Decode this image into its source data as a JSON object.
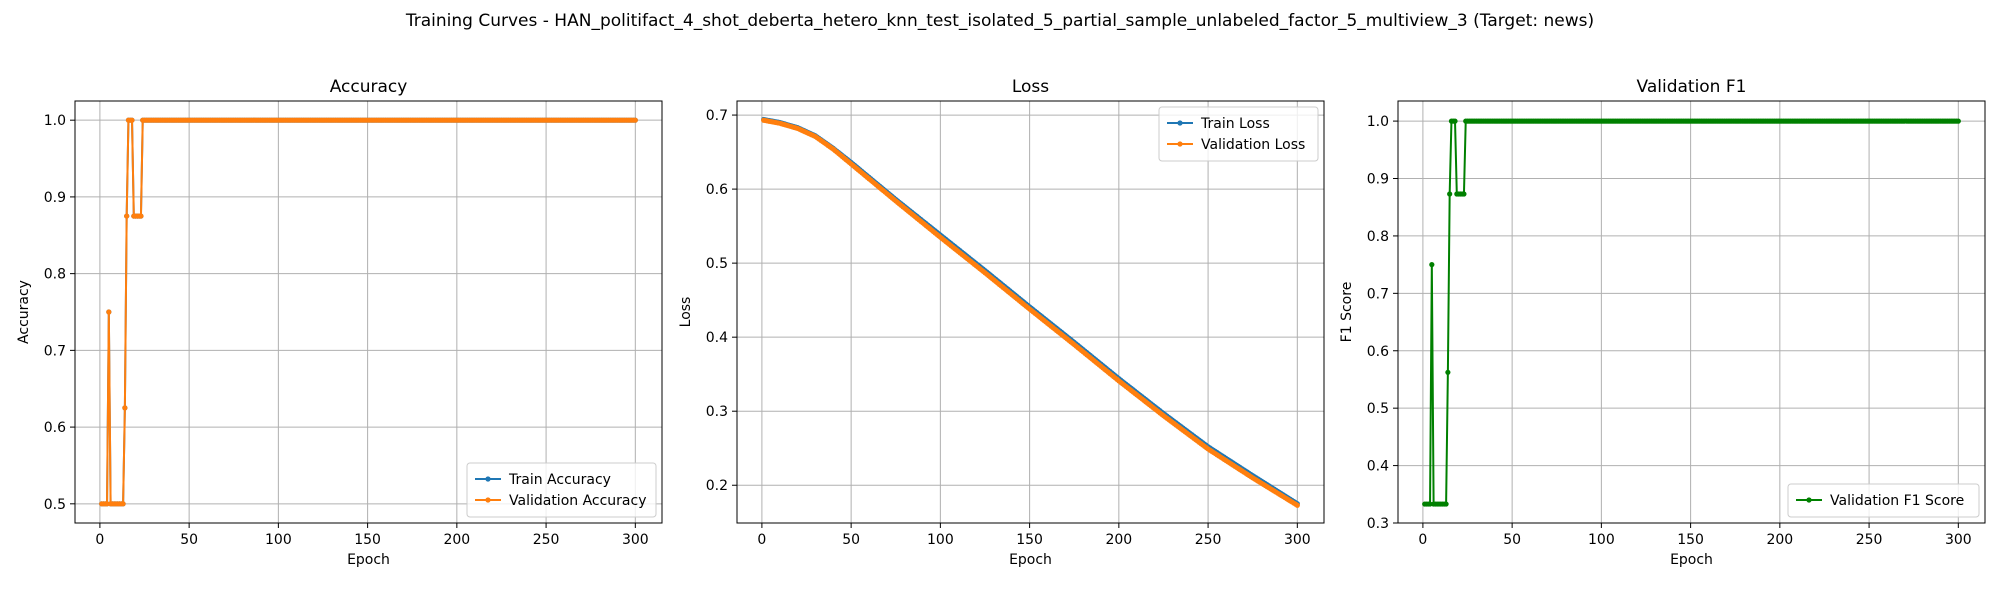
{
  "figure": {
    "suptitle": "Training Curves - HAN_politifact_4_shot_deberta_hetero_knn_test_isolated_5_partial_sample_unlabeled_factor_5_multiview_3 (Target: news)"
  },
  "colors": {
    "train": "#1f77b4",
    "validation": "#ff7f0e",
    "f1": "#008000"
  },
  "chart_data": [
    {
      "type": "line",
      "title": "Accuracy",
      "xlabel": "Epoch",
      "ylabel": "Accuracy",
      "xlim": [
        -13.95,
        314.95
      ],
      "ylim": [
        0.475,
        1.025
      ],
      "xticks": [
        0,
        50,
        100,
        150,
        200,
        250,
        300
      ],
      "yticks": [
        0.5,
        0.6,
        0.7,
        0.8,
        0.9,
        1.0
      ],
      "ytick_decimals": 1,
      "grid": true,
      "legend_position": "lower-right",
      "series": [
        {
          "name": "Train Accuracy",
          "color": "#1f77b4",
          "marker": "dot",
          "segments": [
            {
              "x": [
                1,
                2,
                3,
                4,
                5,
                6,
                7,
                8,
                9,
                10,
                11,
                12,
                13,
                14,
                15,
                16,
                17,
                18,
                19,
                20,
                21,
                22,
                23,
                24
              ],
              "y": [
                0.5,
                0.5,
                0.5,
                0.5,
                0.75,
                0.5,
                0.5,
                0.5,
                0.5,
                0.5,
                0.5,
                0.5,
                0.5,
                0.625,
                0.875,
                1.0,
                1.0,
                1.0,
                0.875,
                0.875,
                0.875,
                0.875,
                0.875,
                1.0
              ]
            },
            {
              "from": 24,
              "to": 300,
              "y": 1.0
            }
          ]
        },
        {
          "name": "Validation Accuracy",
          "color": "#ff7f0e",
          "marker": "dot",
          "segments": [
            {
              "x": [
                1,
                2,
                3,
                4,
                5,
                6,
                7,
                8,
                9,
                10,
                11,
                12,
                13,
                14,
                15,
                16,
                17,
                18,
                19,
                20,
                21,
                22,
                23,
                24
              ],
              "y": [
                0.5,
                0.5,
                0.5,
                0.5,
                0.75,
                0.5,
                0.5,
                0.5,
                0.5,
                0.5,
                0.5,
                0.5,
                0.5,
                0.625,
                0.875,
                1.0,
                1.0,
                1.0,
                0.875,
                0.875,
                0.875,
                0.875,
                0.875,
                1.0
              ]
            },
            {
              "from": 24,
              "to": 300,
              "y": 1.0
            }
          ]
        }
      ]
    },
    {
      "type": "line",
      "title": "Loss",
      "xlabel": "Epoch",
      "ylabel": "Loss",
      "xlim": [
        -13.95,
        314.95
      ],
      "ylim": [
        0.149,
        0.719
      ],
      "xticks": [
        0,
        50,
        100,
        150,
        200,
        250,
        300
      ],
      "yticks": [
        0.2,
        0.3,
        0.4,
        0.5,
        0.6,
        0.7
      ],
      "ytick_decimals": 1,
      "grid": true,
      "legend_position": "upper-right",
      "series": [
        {
          "name": "Train Loss",
          "color": "#1f77b4",
          "marker": "dot",
          "anchors": [
            [
              1,
              0.694
            ],
            [
              10,
              0.69
            ],
            [
              20,
              0.683
            ],
            [
              30,
              0.672
            ],
            [
              40,
              0.655
            ],
            [
              50,
              0.636
            ],
            [
              75,
              0.586
            ],
            [
              100,
              0.538
            ],
            [
              125,
              0.49
            ],
            [
              150,
              0.441
            ],
            [
              175,
              0.393
            ],
            [
              200,
              0.344
            ],
            [
              225,
              0.297
            ],
            [
              250,
              0.252
            ],
            [
              275,
              0.213
            ],
            [
              300,
              0.175
            ]
          ]
        },
        {
          "name": "Validation Loss",
          "color": "#ff7f0e",
          "marker": "dot",
          "anchors": [
            [
              1,
              0.693
            ],
            [
              10,
              0.689
            ],
            [
              20,
              0.682
            ],
            [
              30,
              0.671
            ],
            [
              40,
              0.654
            ],
            [
              50,
              0.634
            ],
            [
              75,
              0.584
            ],
            [
              100,
              0.535
            ],
            [
              125,
              0.487
            ],
            [
              150,
              0.438
            ],
            [
              175,
              0.39
            ],
            [
              200,
              0.341
            ],
            [
              225,
              0.294
            ],
            [
              250,
              0.249
            ],
            [
              275,
              0.21
            ],
            [
              300,
              0.173
            ]
          ]
        }
      ]
    },
    {
      "type": "line",
      "title": "Validation F1",
      "xlabel": "Epoch",
      "ylabel": "F1 Score",
      "xlim": [
        -13.95,
        314.95
      ],
      "ylim": [
        0.3,
        1.035
      ],
      "xticks": [
        0,
        50,
        100,
        150,
        200,
        250,
        300
      ],
      "yticks": [
        0.3,
        0.4,
        0.5,
        0.6,
        0.7,
        0.8,
        0.9,
        1.0
      ],
      "ytick_decimals": 1,
      "grid": true,
      "legend_position": "lower-right",
      "series": [
        {
          "name": "Validation F1 Score",
          "color": "#008000",
          "marker": "dot",
          "segments": [
            {
              "x": [
                1,
                2,
                3,
                4,
                5,
                6,
                7,
                8,
                9,
                10,
                11,
                12,
                13,
                14,
                15,
                16,
                17,
                18,
                19,
                20,
                21,
                22,
                23,
                24
              ],
              "y": [
                0.333,
                0.333,
                0.333,
                0.333,
                0.75,
                0.333,
                0.333,
                0.333,
                0.333,
                0.333,
                0.333,
                0.333,
                0.333,
                0.5625,
                0.873,
                1.0,
                1.0,
                1.0,
                0.873,
                0.873,
                0.873,
                0.873,
                0.873,
                1.0
              ]
            },
            {
              "from": 24,
              "to": 300,
              "y": 1.0
            }
          ]
        }
      ]
    }
  ]
}
